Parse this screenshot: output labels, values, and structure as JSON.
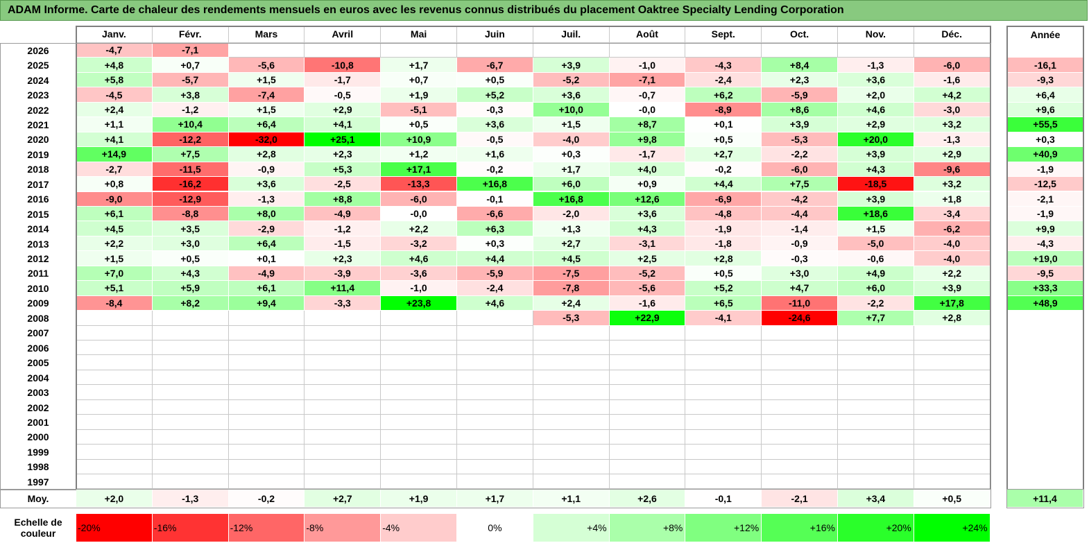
{
  "title": "ADAM Informe. Carte de chaleur des rendements mensuels en euros avec les revenus connus distribués du placement Oaktree Specialty Lending Corporation",
  "months": [
    "Janv.",
    "Févr.",
    "Mars",
    "Avril",
    "Mai",
    "Juin",
    "Juil.",
    "Août",
    "Sept.",
    "Oct.",
    "Nov.",
    "Déc."
  ],
  "year_header": "Année",
  "avg_label": "Moy.",
  "scale_label_line1": "Echelle de",
  "scale_label_line2": "couleur",
  "scale_stops": [
    "-20%",
    "-16%",
    "-12%",
    "-8%",
    "-4%",
    "0%",
    "+4%",
    "+8%",
    "+12%",
    "+16%",
    "+20%",
    "+24%"
  ],
  "colors": {
    "title_bg": "#88c97f",
    "negative_max": "#ff0000",
    "positive_max": "#00ff00",
    "neutral": "#ffffff"
  },
  "chart_data": {
    "type": "heatmap",
    "title": "ADAM Informe. Carte de chaleur des rendements mensuels en euros avec les revenus connus distribués du placement Oaktree Specialty Lending Corporation",
    "x": [
      "Janv.",
      "Févr.",
      "Mars",
      "Avril",
      "Mai",
      "Juin",
      "Juil.",
      "Août",
      "Sept.",
      "Oct.",
      "Nov.",
      "Déc."
    ],
    "rows": [
      {
        "year": "2026",
        "values": [
          "-4,7",
          "-7,1",
          "",
          "",
          "",
          "",
          "",
          "",
          "",
          "",
          "",
          ""
        ],
        "annual": ""
      },
      {
        "year": "2025",
        "values": [
          "+4,8",
          "+0,7",
          "-5,6",
          "-10,8",
          "+1,7",
          "-6,7",
          "+3,9",
          "-1,0",
          "-4,3",
          "+8,4",
          "-1,3",
          "-6,0"
        ],
        "annual": "-16,1"
      },
      {
        "year": "2024",
        "values": [
          "+5,8",
          "-5,7",
          "+1,5",
          "-1,7",
          "+0,7",
          "+0,5",
          "-5,2",
          "-7,1",
          "-2,4",
          "+2,3",
          "+3,6",
          "-1,6"
        ],
        "annual": "-9,3"
      },
      {
        "year": "2023",
        "values": [
          "-4,5",
          "+3,8",
          "-7,4",
          "-0,5",
          "+1,9",
          "+5,2",
          "+3,6",
          "-0,7",
          "+6,2",
          "-5,9",
          "+2,0",
          "+4,2"
        ],
        "annual": "+6,4"
      },
      {
        "year": "2022",
        "values": [
          "+2,4",
          "-1,2",
          "+1,5",
          "+2,9",
          "-5,1",
          "-0,3",
          "+10,0",
          "-0,0",
          "-8,9",
          "+8,6",
          "+4,6",
          "-3,0"
        ],
        "annual": "+9,6"
      },
      {
        "year": "2021",
        "values": [
          "+1,1",
          "+10,4",
          "+6,4",
          "+4,1",
          "+0,5",
          "+3,6",
          "+1,5",
          "+8,7",
          "+0,1",
          "+3,9",
          "+2,9",
          "+3,2"
        ],
        "annual": "+55,5"
      },
      {
        "year": "2020",
        "values": [
          "+4,1",
          "-12,2",
          "-32,0",
          "+25,1",
          "+10,9",
          "-0,5",
          "-4,0",
          "+9,8",
          "+0,5",
          "-5,3",
          "+20,0",
          "-1,3"
        ],
        "annual": "+0,3"
      },
      {
        "year": "2019",
        "values": [
          "+14,9",
          "+7,5",
          "+2,8",
          "+2,3",
          "+1,2",
          "+1,6",
          "+0,3",
          "-1,7",
          "+2,7",
          "-2,2",
          "+3,9",
          "+2,9"
        ],
        "annual": "+40,9"
      },
      {
        "year": "2018",
        "values": [
          "-2,7",
          "-11,5",
          "-0,9",
          "+5,3",
          "+17,1",
          "-0,2",
          "+1,7",
          "+4,0",
          "-0,2",
          "-6,0",
          "+4,3",
          "-9,6"
        ],
        "annual": "-1,9"
      },
      {
        "year": "2017",
        "values": [
          "+0,8",
          "-16,2",
          "+3,6",
          "-2,5",
          "-13,3",
          "+16,8",
          "+6,0",
          "+0,9",
          "+4,4",
          "+7,5",
          "-18,5",
          "+3,2"
        ],
        "annual": "-12,5"
      },
      {
        "year": "2016",
        "values": [
          "-9,0",
          "-12,9",
          "-1,3",
          "+8,8",
          "-6,0",
          "-0,1",
          "+16,8",
          "+12,6",
          "-6,9",
          "-4,2",
          "+3,9",
          "+1,8"
        ],
        "annual": "-2,1"
      },
      {
        "year": "2015",
        "values": [
          "+6,1",
          "-8,8",
          "+8,0",
          "-4,9",
          "-0,0",
          "-6,6",
          "-2,0",
          "+3,6",
          "-4,8",
          "-4,4",
          "+18,6",
          "-3,4"
        ],
        "annual": "-1,9"
      },
      {
        "year": "2014",
        "values": [
          "+4,5",
          "+3,5",
          "-2,9",
          "-1,2",
          "+2,2",
          "+6,3",
          "+1,3",
          "+4,3",
          "-1,9",
          "-1,4",
          "+1,5",
          "-6,2"
        ],
        "annual": "+9,9"
      },
      {
        "year": "2013",
        "values": [
          "+2,2",
          "+3,0",
          "+6,4",
          "-1,5",
          "-3,2",
          "+0,3",
          "+2,7",
          "-3,1",
          "-1,8",
          "-0,9",
          "-5,0",
          "-4,0"
        ],
        "annual": "-4,3"
      },
      {
        "year": "2012",
        "values": [
          "+1,5",
          "+0,5",
          "+0,1",
          "+2,3",
          "+4,6",
          "+4,4",
          "+4,5",
          "+2,5",
          "+2,8",
          "-0,3",
          "-0,6",
          "-4,0"
        ],
        "annual": "+19,0"
      },
      {
        "year": "2011",
        "values": [
          "+7,0",
          "+4,3",
          "-4,9",
          "-3,9",
          "-3,6",
          "-5,9",
          "-7,5",
          "-5,2",
          "+0,5",
          "+3,0",
          "+4,9",
          "+2,2"
        ],
        "annual": "-9,5"
      },
      {
        "year": "2010",
        "values": [
          "+5,1",
          "+5,9",
          "+6,1",
          "+11,4",
          "-1,0",
          "-2,4",
          "-7,8",
          "-5,6",
          "+5,2",
          "+4,7",
          "+6,0",
          "+3,9"
        ],
        "annual": "+33,3"
      },
      {
        "year": "2009",
        "values": [
          "-8,4",
          "+8,2",
          "+9,4",
          "-3,3",
          "+23,8",
          "+4,6",
          "+2,4",
          "-1,6",
          "+6,5",
          "-11,0",
          "-2,2",
          "+17,8"
        ],
        "annual": "+48,9"
      },
      {
        "year": "2008",
        "values": [
          "",
          "",
          "",
          "",
          "",
          "",
          "-5,3",
          "+22,9",
          "-4,1",
          "-24,6",
          "+7,7",
          "+2,8"
        ],
        "annual": ""
      },
      {
        "year": "2007",
        "values": [
          "",
          "",
          "",
          "",
          "",
          "",
          "",
          "",
          "",
          "",
          "",
          ""
        ],
        "annual": ""
      },
      {
        "year": "2006",
        "values": [
          "",
          "",
          "",
          "",
          "",
          "",
          "",
          "",
          "",
          "",
          "",
          ""
        ],
        "annual": ""
      },
      {
        "year": "2005",
        "values": [
          "",
          "",
          "",
          "",
          "",
          "",
          "",
          "",
          "",
          "",
          "",
          ""
        ],
        "annual": ""
      },
      {
        "year": "2004",
        "values": [
          "",
          "",
          "",
          "",
          "",
          "",
          "",
          "",
          "",
          "",
          "",
          ""
        ],
        "annual": ""
      },
      {
        "year": "2003",
        "values": [
          "",
          "",
          "",
          "",
          "",
          "",
          "",
          "",
          "",
          "",
          "",
          ""
        ],
        "annual": ""
      },
      {
        "year": "2002",
        "values": [
          "",
          "",
          "",
          "",
          "",
          "",
          "",
          "",
          "",
          "",
          "",
          ""
        ],
        "annual": ""
      },
      {
        "year": "2001",
        "values": [
          "",
          "",
          "",
          "",
          "",
          "",
          "",
          "",
          "",
          "",
          "",
          ""
        ],
        "annual": ""
      },
      {
        "year": "2000",
        "values": [
          "",
          "",
          "",
          "",
          "",
          "",
          "",
          "",
          "",
          "",
          "",
          ""
        ],
        "annual": ""
      },
      {
        "year": "1999",
        "values": [
          "",
          "",
          "",
          "",
          "",
          "",
          "",
          "",
          "",
          "",
          "",
          ""
        ],
        "annual": ""
      },
      {
        "year": "1998",
        "values": [
          "",
          "",
          "",
          "",
          "",
          "",
          "",
          "",
          "",
          "",
          "",
          ""
        ],
        "annual": ""
      },
      {
        "year": "1997",
        "values": [
          "",
          "",
          "",
          "",
          "",
          "",
          "",
          "",
          "",
          "",
          "",
          ""
        ],
        "annual": ""
      }
    ],
    "averages": [
      "+2,0",
      "-1,3",
      "-0,2",
      "+2,7",
      "+1,9",
      "+1,7",
      "+1,1",
      "+2,6",
      "-0,1",
      "-2,1",
      "+3,4",
      "+0,5"
    ],
    "annual_average": "+11,4",
    "color_scale_range": [
      -20,
      24
    ]
  }
}
